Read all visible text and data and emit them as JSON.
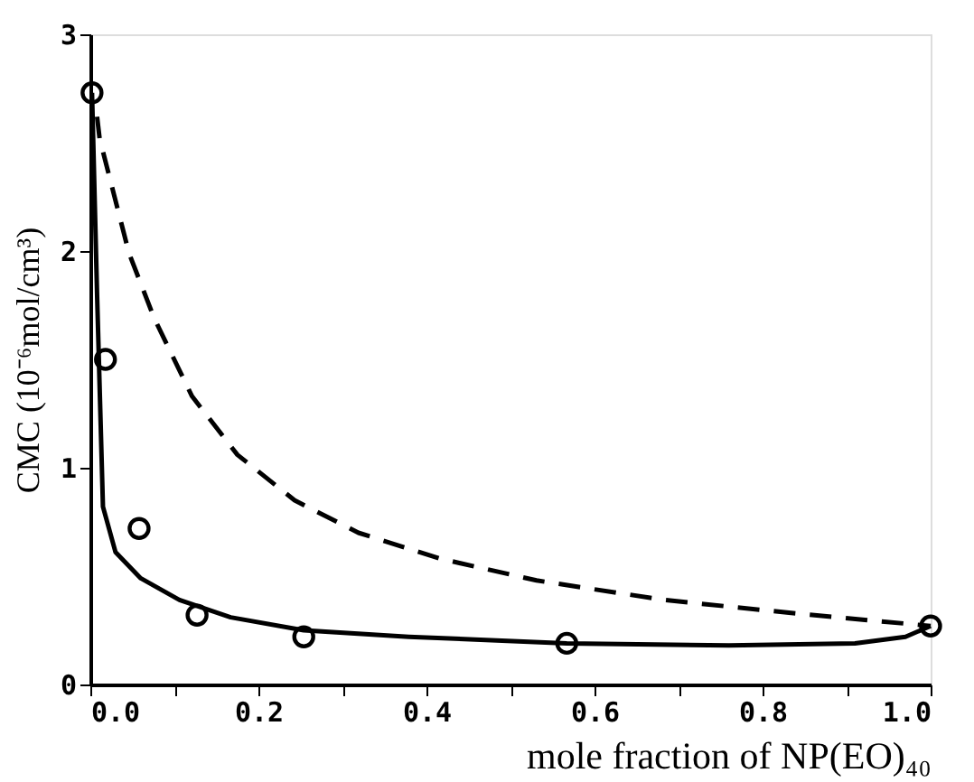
{
  "chart_data": {
    "type": "line",
    "xlabel": "mole fraction of NP(EO)₄₀",
    "ylabel": "CMC (10⁻⁶mol/cm³)",
    "xlim": [
      0,
      1
    ],
    "ylim": [
      0,
      3
    ],
    "xticks": [
      {
        "value": 0,
        "label": "0.0"
      },
      {
        "value": 0.1,
        "label": null
      },
      0.2,
      {
        "value": 0.3,
        "label": null
      },
      0.4,
      {
        "value": 0.5,
        "label": null
      },
      0.6,
      {
        "value": 0.7,
        "label": null
      },
      0.8,
      {
        "value": 0.9,
        "label": null
      },
      {
        "value": 1,
        "label": "1.0"
      }
    ],
    "yticks": [
      0,
      1,
      2,
      3
    ],
    "grid": false,
    "series": [
      {
        "type": "scatter",
        "marker": "circle",
        "color": "#000000",
        "x": [
          0.002,
          0.018,
          0.058,
          0.127,
          0.254,
          0.567,
          1.0
        ],
        "values": [
          2.73,
          1.5,
          0.72,
          0.32,
          0.22,
          0.19,
          0.27
        ]
      },
      {
        "line_style": "solid",
        "color": "#000000",
        "x": [
          0.002,
          0.008,
          0.015,
          0.03,
          0.06,
          0.106,
          0.167,
          0.254,
          0.379,
          0.567,
          0.76,
          0.91,
          0.97,
          1.0
        ],
        "values": [
          2.73,
          1.8,
          0.82,
          0.61,
          0.49,
          0.39,
          0.31,
          0.25,
          0.22,
          0.19,
          0.18,
          0.19,
          0.22,
          0.27
        ]
      },
      {
        "type": "line",
        "line_style": "dashed",
        "color": "#000000",
        "x": [
          0.008,
          0.011,
          0.046,
          0.076,
          0.121,
          0.175,
          0.243,
          0.319,
          0.417,
          0.531,
          0.683,
          0.834,
          1.0
        ],
        "values": [
          2.62,
          2.52,
          1.99,
          1.69,
          1.33,
          1.06,
          0.85,
          0.7,
          0.58,
          0.48,
          0.39,
          0.33,
          0.27
        ]
      }
    ]
  }
}
